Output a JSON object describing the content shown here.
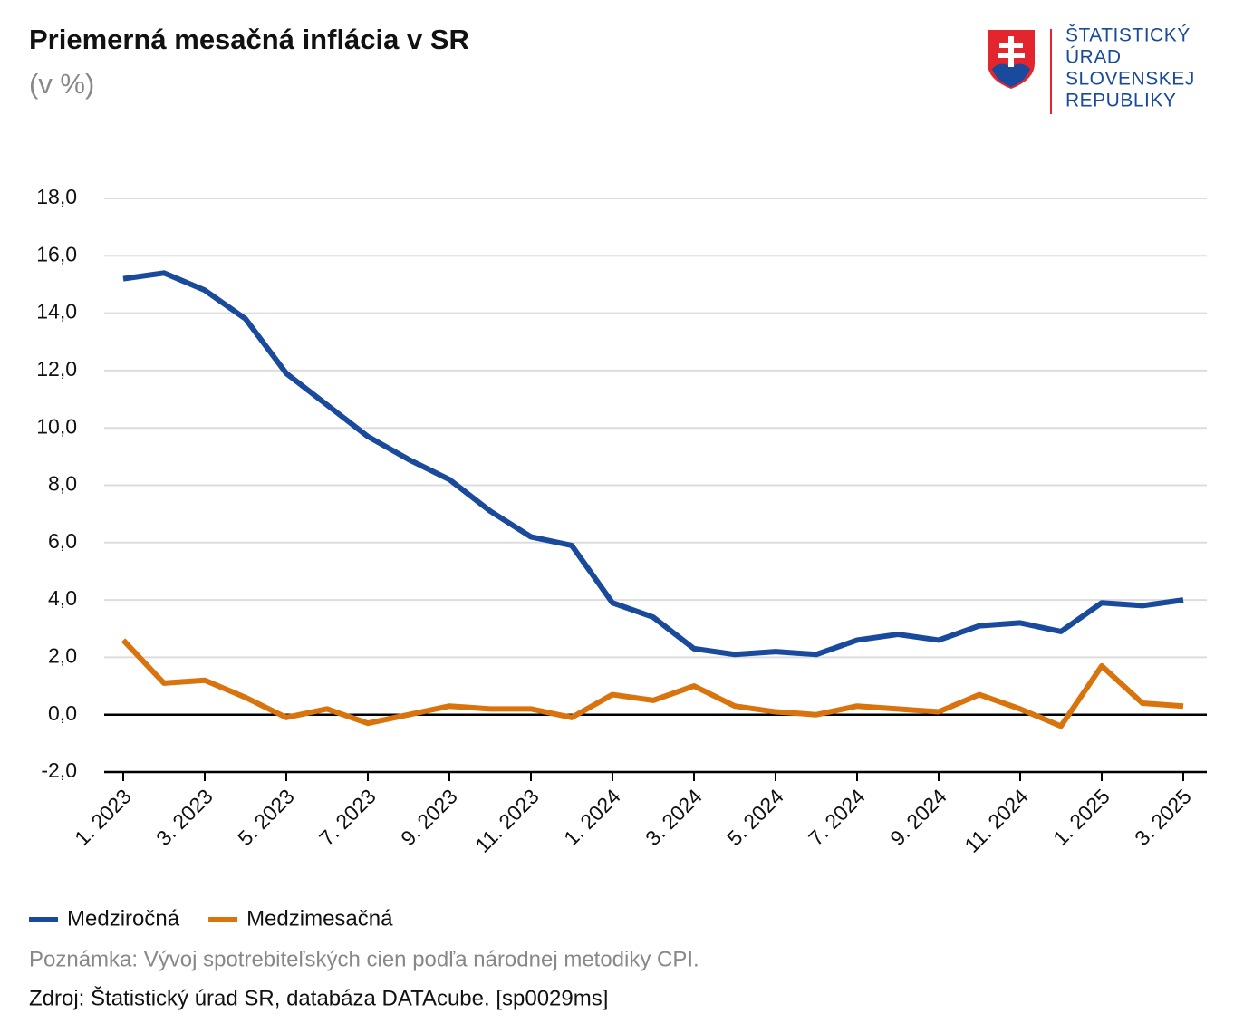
{
  "chart_data": {
    "type": "line",
    "title": "Priemerná mesačná inflácia v SR",
    "subtitle": "(v %)",
    "categories": [
      "1. 2023",
      null,
      "3. 2023",
      null,
      "5. 2023",
      null,
      "7. 2023",
      null,
      "9. 2023",
      null,
      "11. 2023",
      null,
      "1. 2024",
      null,
      "3. 2024",
      null,
      "5. 2024",
      null,
      "7. 2024",
      null,
      "9. 2024",
      null,
      "11. 2024",
      null,
      "1. 2025",
      null,
      "3. 2025"
    ],
    "series": [
      {
        "name": "Medziročná",
        "color": "#1a4a9c",
        "values": [
          15.2,
          15.4,
          14.8,
          13.8,
          11.9,
          10.8,
          9.7,
          8.9,
          8.2,
          7.1,
          6.2,
          5.9,
          3.9,
          3.4,
          2.3,
          2.1,
          2.2,
          2.1,
          2.6,
          2.8,
          2.6,
          3.1,
          3.2,
          2.9,
          3.9,
          3.8,
          4.0
        ]
      },
      {
        "name": "Medzimesačná",
        "color": "#d9730d",
        "values": [
          2.6,
          1.1,
          1.2,
          0.6,
          -0.1,
          0.2,
          -0.3,
          0.0,
          0.3,
          0.2,
          0.2,
          -0.1,
          0.7,
          0.5,
          1.0,
          0.3,
          0.1,
          0.0,
          0.3,
          0.2,
          0.1,
          0.7,
          0.2,
          -0.4,
          1.7,
          0.4,
          0.3
        ]
      }
    ],
    "ylim": [
      -2,
      18
    ],
    "yticks": [
      {
        "value": -2,
        "label": "-2,0"
      },
      {
        "value": 0,
        "label": "0,0"
      },
      {
        "value": 2,
        "label": "2,0"
      },
      {
        "value": 4,
        "label": "4,0"
      },
      {
        "value": 6,
        "label": "6,0"
      },
      {
        "value": 8,
        "label": "8,0"
      },
      {
        "value": 10,
        "label": "10,0"
      },
      {
        "value": 12,
        "label": "12,0"
      },
      {
        "value": 14,
        "label": "14,0"
      },
      {
        "value": 16,
        "label": "16,0"
      },
      {
        "value": 18,
        "label": "18,0"
      }
    ],
    "grid": true,
    "legend": "bottom-left",
    "note": "Poznámka: Vývoj spotrebiteľských cien podľa národnej metodiky CPI.",
    "source": "Zdroj: Štatistický úrad SR, databáza DATAcube. [sp0029ms]"
  },
  "logo": {
    "lines": [
      "ŠTATISTICKÝ",
      "ÚRAD",
      "SLOVENSKEJ",
      "REPUBLIKY"
    ]
  }
}
